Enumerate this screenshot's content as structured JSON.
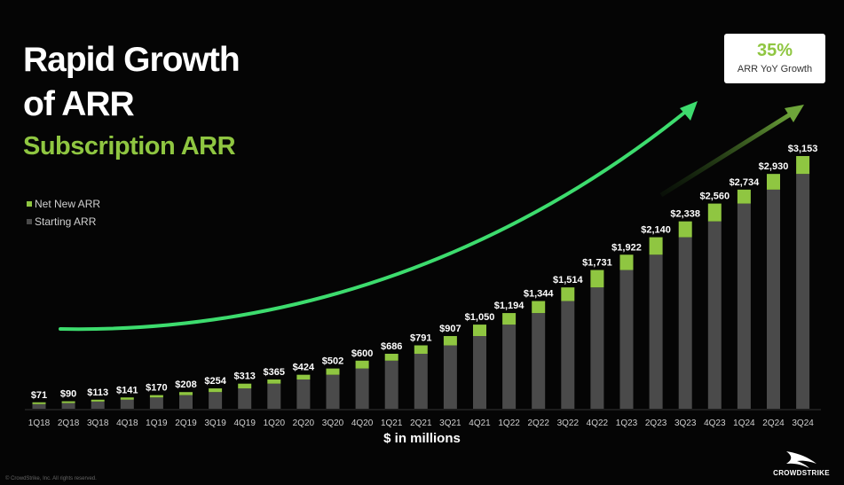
{
  "title_lines": [
    "Rapid Growth",
    "of ARR"
  ],
  "subtitle": "Subscription ARR",
  "badge": {
    "value": "35%",
    "label": "ARR YoY Growth"
  },
  "footnote": "© CrowdStrike, Inc. All rights reserved.",
  "logo_text": "CROWDSTRIKE",
  "colors": {
    "net_new": "#8fc641",
    "starting": "#4a4a4a",
    "arrow": "#3ddc6e",
    "background": "#050505"
  },
  "chart_data": {
    "type": "bar",
    "stacked": true,
    "xlabel": "$ in millions",
    "ylabel": "",
    "ylim": [
      0,
      3153
    ],
    "grid": false,
    "legend": "left",
    "categories": [
      "1Q18",
      "2Q18",
      "3Q18",
      "4Q18",
      "1Q19",
      "2Q19",
      "3Q19",
      "4Q19",
      "1Q20",
      "2Q20",
      "3Q20",
      "4Q20",
      "1Q21",
      "2Q21",
      "3Q21",
      "4Q21",
      "1Q22",
      "2Q22",
      "3Q22",
      "4Q22",
      "1Q23",
      "2Q23",
      "3Q23",
      "4Q23",
      "1Q24",
      "2Q24",
      "3Q24"
    ],
    "totals": [
      71,
      90,
      113,
      141,
      170,
      208,
      254,
      313,
      365,
      424,
      502,
      600,
      686,
      791,
      907,
      1050,
      1194,
      1344,
      1514,
      1731,
      1922,
      2140,
      2338,
      2560,
      2734,
      2930,
      3153
    ],
    "total_labels": [
      "$71",
      "$90",
      "$113",
      "$141",
      "$170",
      "$208",
      "$254",
      "$313",
      "$365",
      "$424",
      "$502",
      "$600",
      "$686",
      "$791",
      "$907",
      "$1,050",
      "$1,194",
      "$1,344",
      "$1,514",
      "$1,731",
      "$1,922",
      "$2,140",
      "$2,338",
      "$2,560",
      "$2,734",
      "$2,930",
      "$3,153"
    ],
    "series": [
      {
        "name": "Starting ARR",
        "values": [
          58,
          71,
          90,
          113,
          141,
          170,
          208,
          254,
          313,
          365,
          424,
          502,
          600,
          686,
          791,
          907,
          1050,
          1194,
          1344,
          1514,
          1731,
          1922,
          2140,
          2338,
          2560,
          2734,
          2930
        ]
      },
      {
        "name": "Net New ARR",
        "values": [
          13,
          19,
          23,
          28,
          29,
          38,
          46,
          59,
          52,
          59,
          78,
          98,
          86,
          105,
          116,
          143,
          144,
          150,
          170,
          217,
          191,
          218,
          198,
          222,
          174,
          196,
          223
        ]
      }
    ]
  }
}
